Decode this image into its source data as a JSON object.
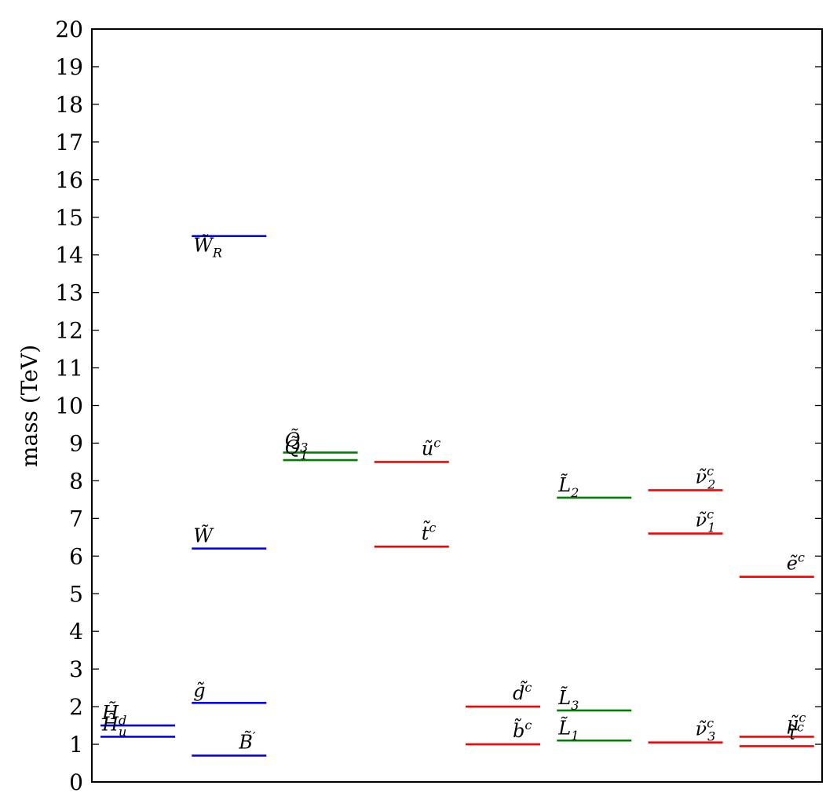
{
  "chart_data": {
    "type": "level-diagram",
    "ylabel": "mass (TeV)",
    "ylim": [
      0,
      20
    ],
    "yticks": [
      0,
      1,
      2,
      3,
      4,
      5,
      6,
      7,
      8,
      9,
      10,
      11,
      12,
      13,
      14,
      15,
      16,
      17,
      18,
      19,
      20
    ],
    "grid": false,
    "legend": "none",
    "colors": {
      "gauge_higgs": "#0000ff",
      "doublets": "#008000",
      "singlets": "#ff0000"
    },
    "columns": 8,
    "levels": [
      {
        "column": 1,
        "value": 1.5,
        "color": "#0000ff",
        "label_main": "H̃",
        "label_sub": "d",
        "label_sup": ""
      },
      {
        "column": 1,
        "value": 1.2,
        "color": "#0000ff",
        "label_main": "H̃",
        "label_sub": "u",
        "label_sup": ""
      },
      {
        "column": 2,
        "value": 14.5,
        "color": "#0000ff",
        "label_main": "W̃",
        "label_sub": "R",
        "label_sup": ""
      },
      {
        "column": 2,
        "value": 6.2,
        "color": "#0000ff",
        "label_main": "W̃",
        "label_sub": "",
        "label_sup": ""
      },
      {
        "column": 2,
        "value": 2.1,
        "color": "#0000ff",
        "label_main": "g̃",
        "label_sub": "",
        "label_sup": ""
      },
      {
        "column": 2,
        "value": 0.7,
        "color": "#0000ff",
        "label_main": "B̃",
        "label_sub": "",
        "label_sup": "′"
      },
      {
        "column": 3,
        "value": 8.75,
        "color": "#008000",
        "label_main": "Q̃",
        "label_sub": "3",
        "label_sup": ""
      },
      {
        "column": 3,
        "value": 8.55,
        "color": "#008000",
        "label_main": "Q̃",
        "label_sub": "1",
        "label_sup": ""
      },
      {
        "column": 4,
        "value": 8.5,
        "color": "#ff0000",
        "label_main": "ũ",
        "label_sub": "",
        "label_sup": "c"
      },
      {
        "column": 4,
        "value": 6.25,
        "color": "#ff0000",
        "label_main": "t̃",
        "label_sub": "",
        "label_sup": "c"
      },
      {
        "column": 5,
        "value": 2.0,
        "color": "#ff0000",
        "label_main": "d̃",
        "label_sub": "",
        "label_sup": "c"
      },
      {
        "column": 5,
        "value": 1.0,
        "color": "#ff0000",
        "label_main": "b̃",
        "label_sub": "",
        "label_sup": "c"
      },
      {
        "column": 6,
        "value": 7.55,
        "color": "#008000",
        "label_main": "L̃",
        "label_sub": "2",
        "label_sup": ""
      },
      {
        "column": 6,
        "value": 1.9,
        "color": "#008000",
        "label_main": "L̃",
        "label_sub": "3",
        "label_sup": ""
      },
      {
        "column": 6,
        "value": 1.1,
        "color": "#008000",
        "label_main": "L̃",
        "label_sub": "1",
        "label_sup": ""
      },
      {
        "column": 7,
        "value": 7.75,
        "color": "#ff0000",
        "label_main": "ν̃",
        "label_sub": "2",
        "label_sup": "c"
      },
      {
        "column": 7,
        "value": 6.6,
        "color": "#ff0000",
        "label_main": "ν̃",
        "label_sub": "1",
        "label_sup": "c"
      },
      {
        "column": 7,
        "value": 1.05,
        "color": "#ff0000",
        "label_main": "ν̃",
        "label_sub": "3",
        "label_sup": "c"
      },
      {
        "column": 8,
        "value": 5.45,
        "color": "#ff0000",
        "label_main": "ẽ",
        "label_sub": "",
        "label_sup": "c"
      },
      {
        "column": 8,
        "value": 1.2,
        "color": "#ff0000",
        "label_main": "μ̃",
        "label_sub": "",
        "label_sup": "c"
      },
      {
        "column": 8,
        "value": 0.95,
        "color": "#ff0000",
        "label_main": "τ̃",
        "label_sub": "",
        "label_sup": "c"
      }
    ]
  }
}
